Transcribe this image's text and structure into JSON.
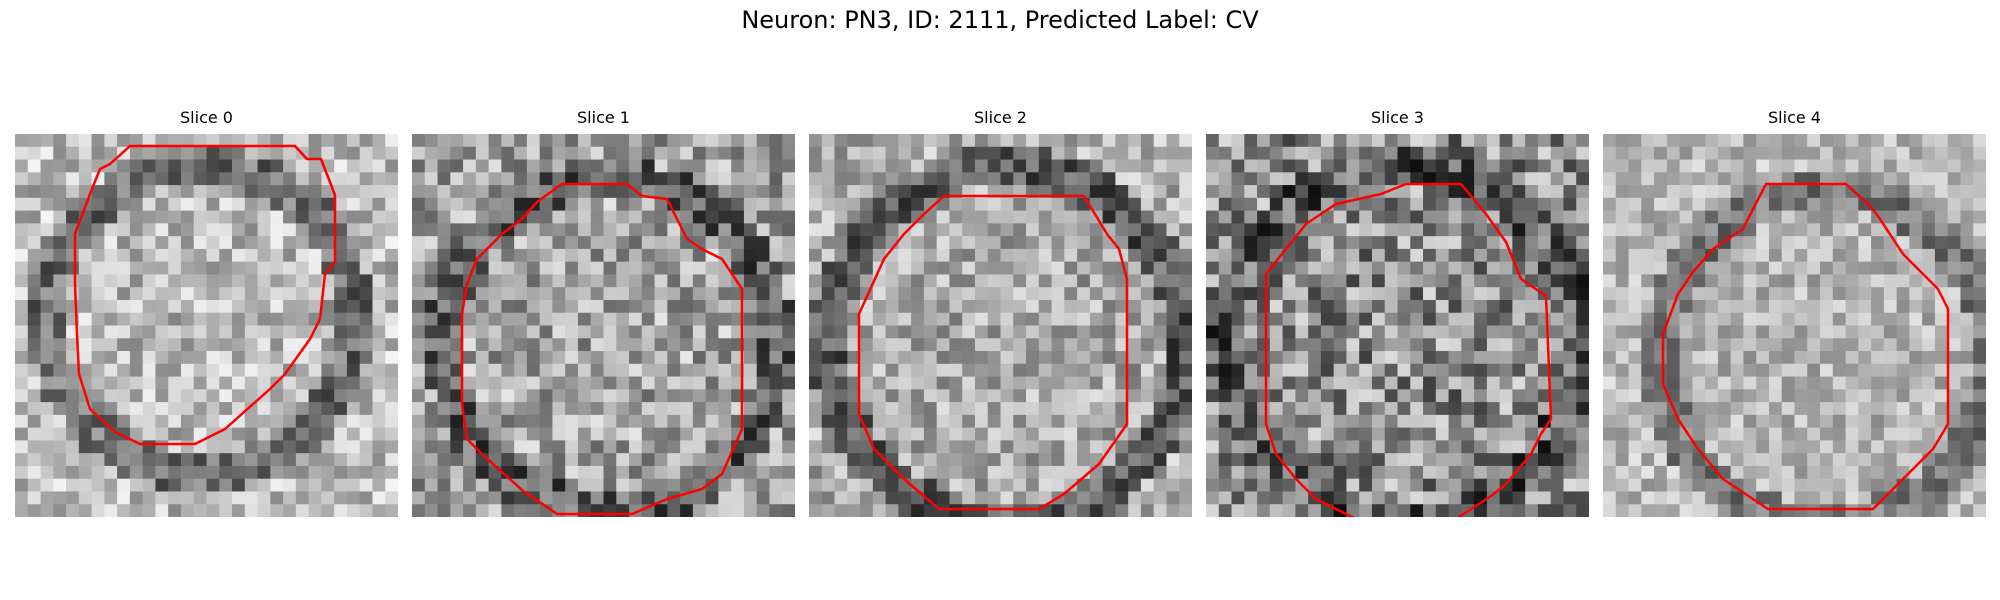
{
  "figure": {
    "title": "Neuron: PN3, ID: 2111, Predicted Label: CV"
  },
  "colors": {
    "contour": "#ff0000",
    "background": "#ffffff"
  },
  "panels": [
    {
      "title": "Slice 0"
    },
    {
      "title": "Slice 1"
    },
    {
      "title": "Slice 2"
    },
    {
      "title": "Slice 3"
    },
    {
      "title": "Slice 4"
    }
  ]
}
